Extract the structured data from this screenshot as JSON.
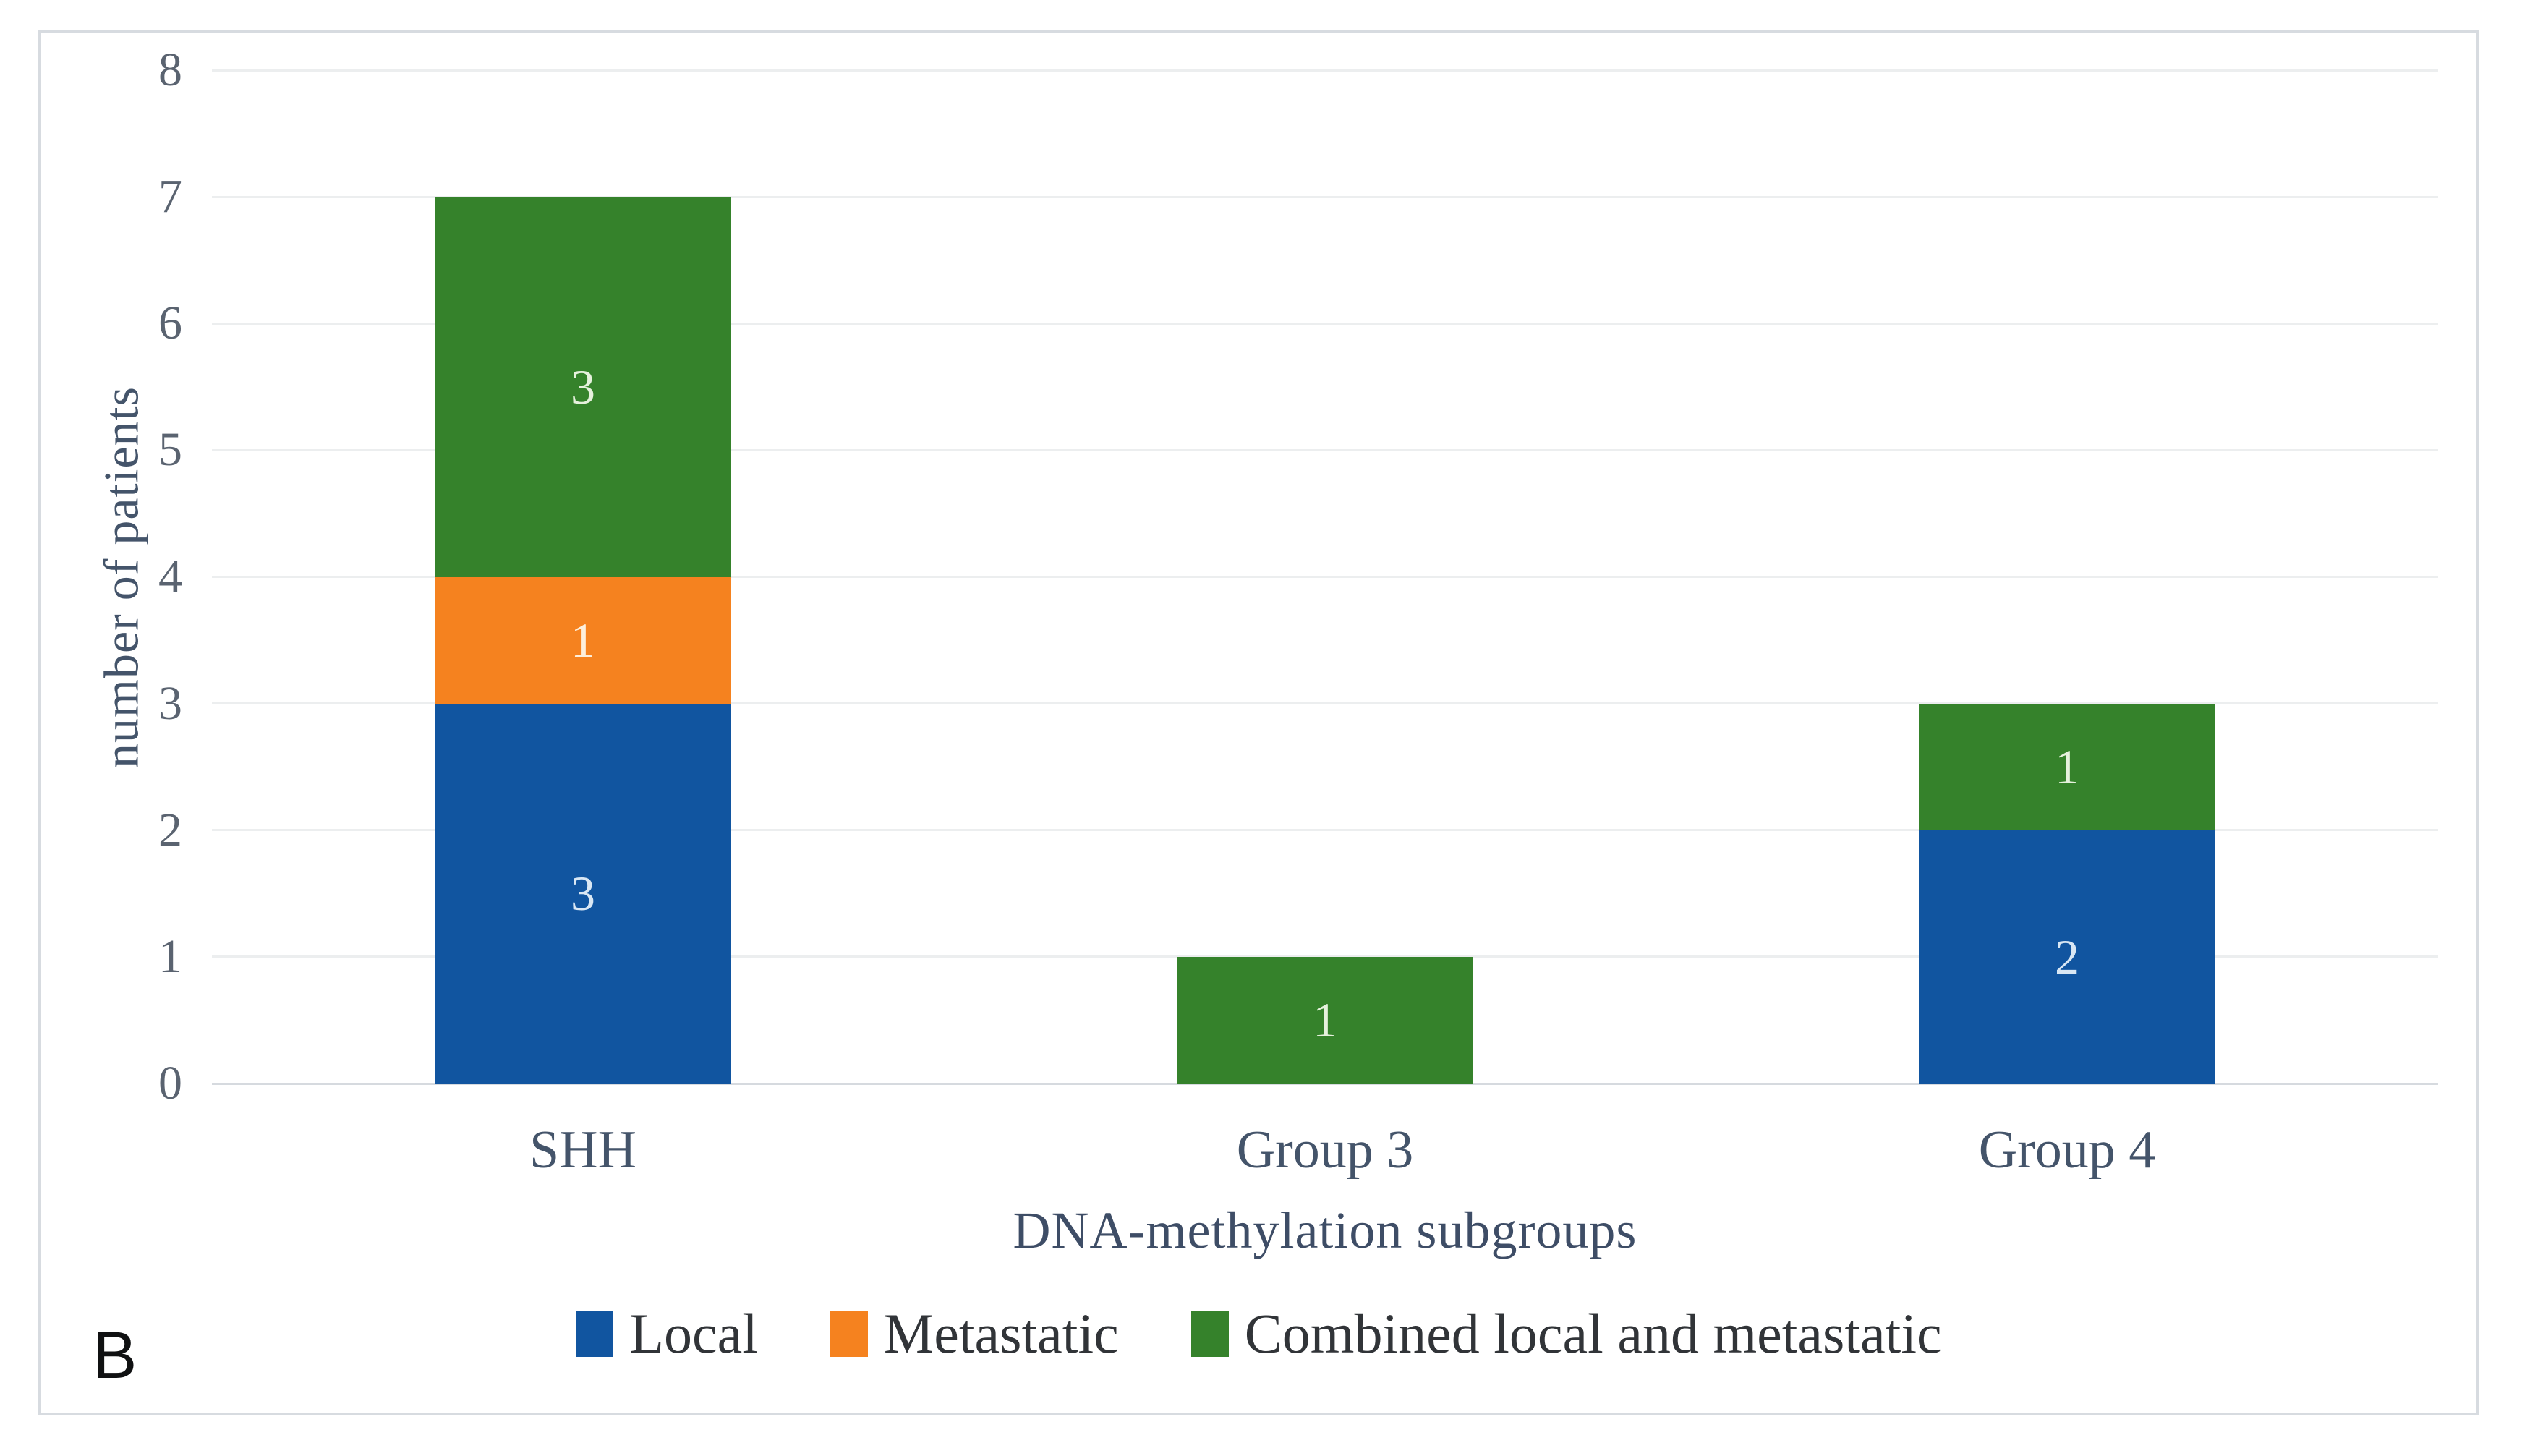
{
  "panel_label": "B",
  "chart_data": {
    "type": "bar",
    "subtype": "stacked-vertical",
    "categories": [
      "SHH",
      "Group 3",
      "Group 4"
    ],
    "series": [
      {
        "name": "Local",
        "color": "#1155a0",
        "label_color": "#d9e7f4",
        "values": [
          3,
          0,
          2
        ]
      },
      {
        "name": "Metastatic",
        "color": "#f5821f",
        "label_color": "#fdefdb",
        "values": [
          1,
          0,
          0
        ]
      },
      {
        "name": "Combined local and metastatic",
        "color": "#35822b",
        "label_color": "#e6f1dd",
        "values": [
          3,
          1,
          1
        ]
      }
    ],
    "title": "",
    "xlabel": "DNA-methylation subgroups",
    "ylabel": "number of patients",
    "ylim": [
      0,
      8
    ],
    "yticks": [
      0,
      1,
      2,
      3,
      4,
      5,
      6,
      7,
      8
    ],
    "grid": true,
    "legend_position": "bottom",
    "data_labels": {
      "SHH": [
        3,
        1,
        3
      ],
      "Group 3": [
        1
      ],
      "Group 4": [
        2,
        1
      ]
    }
  }
}
